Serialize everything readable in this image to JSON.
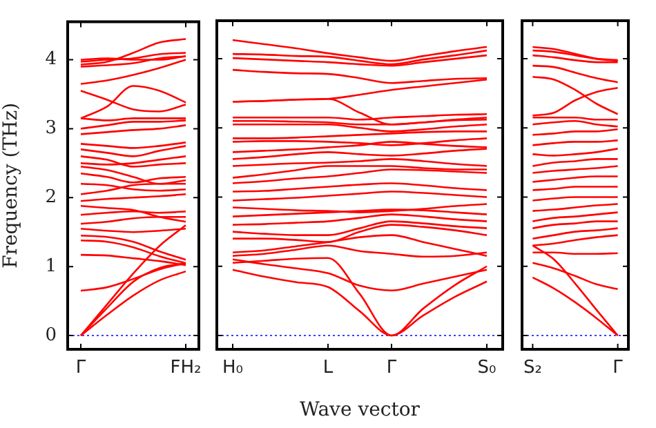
{
  "chart_data": [
    {
      "type": "line",
      "ylabel": "Frequency (THz)",
      "ylim": [
        -0.2,
        4.55
      ],
      "yticks": [
        0,
        1,
        2,
        3,
        4
      ],
      "categories": [
        "Γ",
        null,
        null,
        null,
        "FH₂"
      ],
      "marker": "none",
      "legend": false,
      "grid": false,
      "ref_lines": [
        {
          "axis": "y",
          "value": 0,
          "color": "#0000ff",
          "line_style": "dotted"
        }
      ],
      "series": [
        {
          "color": "#ff0000",
          "values": [
            0,
            0.3,
            0.58,
            0.8,
            0.93
          ]
        },
        {
          "color": "#ff0000",
          "values": [
            0,
            0.4,
            0.78,
            0.98,
            1.05
          ]
        },
        {
          "color": "#ff0000",
          "values": [
            0,
            0.45,
            0.9,
            1.3,
            1.6
          ]
        },
        {
          "color": "#ff0000",
          "values": [
            0.65,
            0.7,
            0.82,
            0.96,
            1.05
          ]
        },
        {
          "color": "#ff0000",
          "values": [
            1.17,
            1.16,
            1.12,
            1.08,
            1.02
          ]
        },
        {
          "color": "#ff0000",
          "values": [
            1.38,
            1.36,
            1.28,
            1.15,
            1.05
          ]
        },
        {
          "color": "#ff0000",
          "values": [
            1.45,
            1.43,
            1.36,
            1.22,
            1.1
          ]
        },
        {
          "color": "#ff0000",
          "values": [
            1.55,
            1.52,
            1.5,
            1.52,
            1.55
          ]
        },
        {
          "color": "#ff0000",
          "values": [
            1.62,
            1.65,
            1.7,
            1.72,
            1.72
          ]
        },
        {
          "color": "#ff0000",
          "values": [
            1.75,
            1.78,
            1.8,
            1.78,
            1.8
          ]
        },
        {
          "color": "#ff0000",
          "values": [
            1.88,
            1.85,
            1.82,
            1.72,
            1.65
          ]
        },
        {
          "color": "#ff0000",
          "values": [
            1.95,
            1.98,
            2.0,
            2.02,
            2.05
          ]
        },
        {
          "color": "#ff0000",
          "values": [
            2.05,
            2.1,
            2.18,
            2.2,
            2.2
          ]
        },
        {
          "color": "#ff0000",
          "values": [
            2.2,
            2.18,
            2.12,
            2.1,
            2.12
          ]
        },
        {
          "color": "#ff0000",
          "values": [
            2.35,
            2.3,
            2.22,
            2.28,
            2.3
          ]
        },
        {
          "color": "#ff0000",
          "values": [
            2.45,
            2.4,
            2.3,
            2.2,
            2.25
          ]
        },
        {
          "color": "#ff0000",
          "values": [
            2.5,
            2.48,
            2.5,
            2.55,
            2.6
          ]
        },
        {
          "color": "#ff0000",
          "values": [
            2.6,
            2.55,
            2.45,
            2.48,
            2.5
          ]
        },
        {
          "color": "#ff0000",
          "values": [
            2.7,
            2.65,
            2.6,
            2.68,
            2.75
          ]
        },
        {
          "color": "#ff0000",
          "values": [
            2.78,
            2.75,
            2.72,
            2.75,
            2.8
          ]
        },
        {
          "color": "#ff0000",
          "values": [
            2.92,
            2.95,
            2.98,
            3.0,
            3.05
          ]
        },
        {
          "color": "#ff0000",
          "values": [
            3.0,
            3.05,
            3.1,
            3.1,
            3.12
          ]
        },
        {
          "color": "#ff0000",
          "values": [
            3.15,
            3.12,
            3.15,
            3.15,
            3.15
          ]
        },
        {
          "color": "#ff0000",
          "values": [
            3.15,
            3.32,
            3.62,
            3.55,
            3.38
          ]
        },
        {
          "color": "#ff0000",
          "values": [
            3.55,
            3.42,
            3.28,
            3.25,
            3.35
          ]
        },
        {
          "color": "#ff0000",
          "values": [
            3.65,
            3.7,
            3.78,
            3.88,
            4.0
          ]
        },
        {
          "color": "#ff0000",
          "values": [
            3.9,
            3.92,
            3.95,
            4.02,
            4.05
          ]
        },
        {
          "color": "#ff0000",
          "values": [
            3.93,
            3.97,
            4.1,
            4.25,
            4.3
          ]
        },
        {
          "color": "#ff0000",
          "values": [
            3.97,
            4.0,
            4.02,
            4.08,
            4.1
          ]
        },
        {
          "color": "#ff0000",
          "values": [
            4.0,
            4.02,
            4.0,
            4.0,
            4.05
          ]
        }
      ]
    },
    {
      "type": "line",
      "xlabel": "Wave vector",
      "ylim": [
        -0.2,
        4.55
      ],
      "yticks": [
        0,
        1,
        2,
        3,
        4
      ],
      "tick_labels": "x",
      "categories": [
        "H₀",
        null,
        null,
        "L",
        null,
        "Γ",
        null,
        null,
        "S₀"
      ],
      "marker": "none",
      "legend": false,
      "grid": false,
      "ref_lines": [
        {
          "axis": "y",
          "value": 0,
          "color": "#0000ff",
          "line_style": "dotted"
        }
      ],
      "series": [
        {
          "color": "#ff0000",
          "values": [
            0.95,
            0.85,
            0.77,
            0.7,
            0.35,
            0,
            0.29,
            0.56,
            0.78
          ]
        },
        {
          "color": "#ff0000",
          "values": [
            1.05,
            1.08,
            1.11,
            1.12,
            0.6,
            0,
            0.39,
            0.73,
            1.0
          ]
        },
        {
          "color": "#ff0000",
          "values": [
            1.1,
            1.03,
            0.97,
            0.9,
            0.72,
            0.65,
            0.75,
            0.85,
            0.95
          ]
        },
        {
          "color": "#ff0000",
          "values": [
            1.15,
            1.18,
            1.24,
            1.3,
            1.22,
            1.18,
            1.14,
            1.15,
            1.2
          ]
        },
        {
          "color": "#ff0000",
          "values": [
            1.2,
            1.23,
            1.29,
            1.35,
            1.42,
            1.45,
            1.35,
            1.25,
            1.15
          ]
        },
        {
          "color": "#ff0000",
          "values": [
            1.4,
            1.4,
            1.38,
            1.35,
            1.5,
            1.6,
            1.57,
            1.52,
            1.45
          ]
        },
        {
          "color": "#ff0000",
          "values": [
            1.5,
            1.47,
            1.45,
            1.45,
            1.55,
            1.65,
            1.62,
            1.58,
            1.55
          ]
        },
        {
          "color": "#ff0000",
          "values": [
            1.6,
            1.61,
            1.63,
            1.65,
            1.7,
            1.75,
            1.72,
            1.68,
            1.65
          ]
        },
        {
          "color": "#ff0000",
          "values": [
            1.72,
            1.74,
            1.76,
            1.78,
            1.8,
            1.82,
            1.81,
            1.78,
            1.75
          ]
        },
        {
          "color": "#ff0000",
          "values": [
            1.85,
            1.83,
            1.81,
            1.8,
            1.78,
            1.8,
            1.83,
            1.87,
            1.9
          ]
        },
        {
          "color": "#ff0000",
          "values": [
            1.95,
            1.97,
            1.99,
            2.02,
            2.05,
            2.08,
            2.06,
            2.03,
            2.0
          ]
        },
        {
          "color": "#ff0000",
          "values": [
            2.08,
            2.09,
            2.12,
            2.15,
            2.18,
            2.2,
            2.17,
            2.13,
            2.1
          ]
        },
        {
          "color": "#ff0000",
          "values": [
            2.2,
            2.23,
            2.27,
            2.3,
            2.35,
            2.4,
            2.39,
            2.37,
            2.35
          ]
        },
        {
          "color": "#ff0000",
          "values": [
            2.28,
            2.33,
            2.39,
            2.45,
            2.45,
            2.45,
            2.42,
            2.4,
            2.4
          ]
        },
        {
          "color": "#ff0000",
          "values": [
            2.45,
            2.47,
            2.49,
            2.5,
            2.52,
            2.55,
            2.52,
            2.48,
            2.45
          ]
        },
        {
          "color": "#ff0000",
          "values": [
            2.55,
            2.58,
            2.62,
            2.65,
            2.62,
            2.6,
            2.63,
            2.67,
            2.7
          ]
        },
        {
          "color": "#ff0000",
          "values": [
            2.65,
            2.67,
            2.69,
            2.72,
            2.75,
            2.8,
            2.77,
            2.74,
            2.72
          ]
        },
        {
          "color": "#ff0000",
          "values": [
            2.8,
            2.81,
            2.81,
            2.8,
            2.78,
            2.75,
            2.78,
            2.82,
            2.85
          ]
        },
        {
          "color": "#ff0000",
          "values": [
            2.85,
            2.85,
            2.86,
            2.88,
            2.9,
            2.92,
            2.94,
            2.95,
            2.95
          ]
        },
        {
          "color": "#ff0000",
          "values": [
            3.05,
            3.05,
            3.05,
            3.05,
            3.0,
            2.95,
            2.98,
            3.02,
            3.05
          ]
        },
        {
          "color": "#ff0000",
          "values": [
            3.1,
            3.1,
            3.09,
            3.08,
            3.05,
            3.05,
            3.08,
            3.12,
            3.15
          ]
        },
        {
          "color": "#ff0000",
          "values": [
            3.15,
            3.15,
            3.15,
            3.15,
            3.12,
            3.15,
            3.17,
            3.19,
            3.2
          ]
        },
        {
          "color": "#ff0000",
          "values": [
            3.38,
            3.39,
            3.41,
            3.42,
            3.22,
            3.05,
            3.08,
            3.11,
            3.12
          ]
        },
        {
          "color": "#ff0000",
          "values": [
            3.38,
            3.39,
            3.41,
            3.42,
            3.48,
            3.55,
            3.6,
            3.65,
            3.7
          ]
        },
        {
          "color": "#ff0000",
          "values": [
            3.84,
            3.81,
            3.79,
            3.78,
            3.72,
            3.65,
            3.68,
            3.71,
            3.72
          ]
        },
        {
          "color": "#ff0000",
          "values": [
            4.01,
            3.99,
            3.97,
            3.95,
            3.92,
            3.9,
            3.95,
            4.0,
            4.05
          ]
        },
        {
          "color": "#ff0000",
          "values": [
            4.07,
            4.06,
            4.04,
            4.03,
            3.97,
            3.92,
            3.99,
            4.05,
            4.12
          ]
        },
        {
          "color": "#ff0000",
          "values": [
            4.27,
            4.21,
            4.15,
            4.08,
            4.02,
            3.97,
            4.04,
            4.11,
            4.17
          ]
        }
      ]
    },
    {
      "type": "line",
      "ylim": [
        -0.2,
        4.55
      ],
      "yticks": [
        0,
        1,
        2,
        3,
        4
      ],
      "tick_labels": "x",
      "categories": [
        "S₂",
        null,
        null,
        null,
        "Γ"
      ],
      "marker": "none",
      "legend": false,
      "grid": false,
      "ref_lines": [
        {
          "axis": "y",
          "value": 0,
          "color": "#0000ff",
          "line_style": "dotted"
        }
      ],
      "series": [
        {
          "color": "#ff0000",
          "values": [
            0.84,
            0.68,
            0.48,
            0.25,
            0
          ]
        },
        {
          "color": "#ff0000",
          "values": [
            1.3,
            1.1,
            0.75,
            0.37,
            0
          ]
        },
        {
          "color": "#ff0000",
          "values": [
            1.05,
            0.97,
            0.86,
            0.74,
            0.67
          ]
        },
        {
          "color": "#ff0000",
          "values": [
            1.2,
            1.2,
            1.18,
            1.18,
            1.19
          ]
        },
        {
          "color": "#ff0000",
          "values": [
            1.3,
            1.33,
            1.38,
            1.42,
            1.45
          ]
        },
        {
          "color": "#ff0000",
          "values": [
            1.4,
            1.45,
            1.5,
            1.52,
            1.55
          ]
        },
        {
          "color": "#ff0000",
          "values": [
            1.55,
            1.6,
            1.62,
            1.65,
            1.65
          ]
        },
        {
          "color": "#ff0000",
          "values": [
            1.65,
            1.7,
            1.72,
            1.75,
            1.78
          ]
        },
        {
          "color": "#ff0000",
          "values": [
            1.8,
            1.82,
            1.85,
            1.88,
            1.9
          ]
        },
        {
          "color": "#ff0000",
          "values": [
            1.95,
            1.98,
            2.0,
            2.0,
            2.0
          ]
        },
        {
          "color": "#ff0000",
          "values": [
            2.1,
            2.12,
            2.15,
            2.15,
            2.15
          ]
        },
        {
          "color": "#ff0000",
          "values": [
            2.22,
            2.25,
            2.28,
            2.3,
            2.3
          ]
        },
        {
          "color": "#ff0000",
          "values": [
            2.35,
            2.38,
            2.4,
            2.42,
            2.45
          ]
        },
        {
          "color": "#ff0000",
          "values": [
            2.45,
            2.5,
            2.52,
            2.55,
            2.55
          ]
        },
        {
          "color": "#ff0000",
          "values": [
            2.62,
            2.6,
            2.62,
            2.65,
            2.7
          ]
        },
        {
          "color": "#ff0000",
          "values": [
            2.75,
            2.78,
            2.8,
            2.8,
            2.82
          ]
        },
        {
          "color": "#ff0000",
          "values": [
            2.9,
            2.92,
            2.95,
            2.95,
            2.98
          ]
        },
        {
          "color": "#ff0000",
          "values": [
            3.05,
            3.08,
            3.1,
            3.05,
            3.02
          ]
        },
        {
          "color": "#ff0000",
          "values": [
            3.15,
            3.15,
            3.15,
            3.12,
            3.12
          ]
        },
        {
          "color": "#ff0000",
          "values": [
            3.18,
            3.22,
            3.4,
            3.52,
            3.58
          ]
        },
        {
          "color": "#ff0000",
          "values": [
            3.74,
            3.7,
            3.55,
            3.35,
            3.2
          ]
        },
        {
          "color": "#ff0000",
          "values": [
            3.9,
            3.88,
            3.8,
            3.72,
            3.66
          ]
        },
        {
          "color": "#ff0000",
          "values": [
            4.05,
            4.02,
            3.98,
            3.95,
            3.95
          ]
        },
        {
          "color": "#ff0000",
          "values": [
            4.12,
            4.1,
            4.05,
            4.0,
            3.98
          ]
        },
        {
          "color": "#ff0000",
          "values": [
            4.17,
            4.14,
            4.07,
            4.0,
            3.97
          ]
        }
      ]
    }
  ]
}
